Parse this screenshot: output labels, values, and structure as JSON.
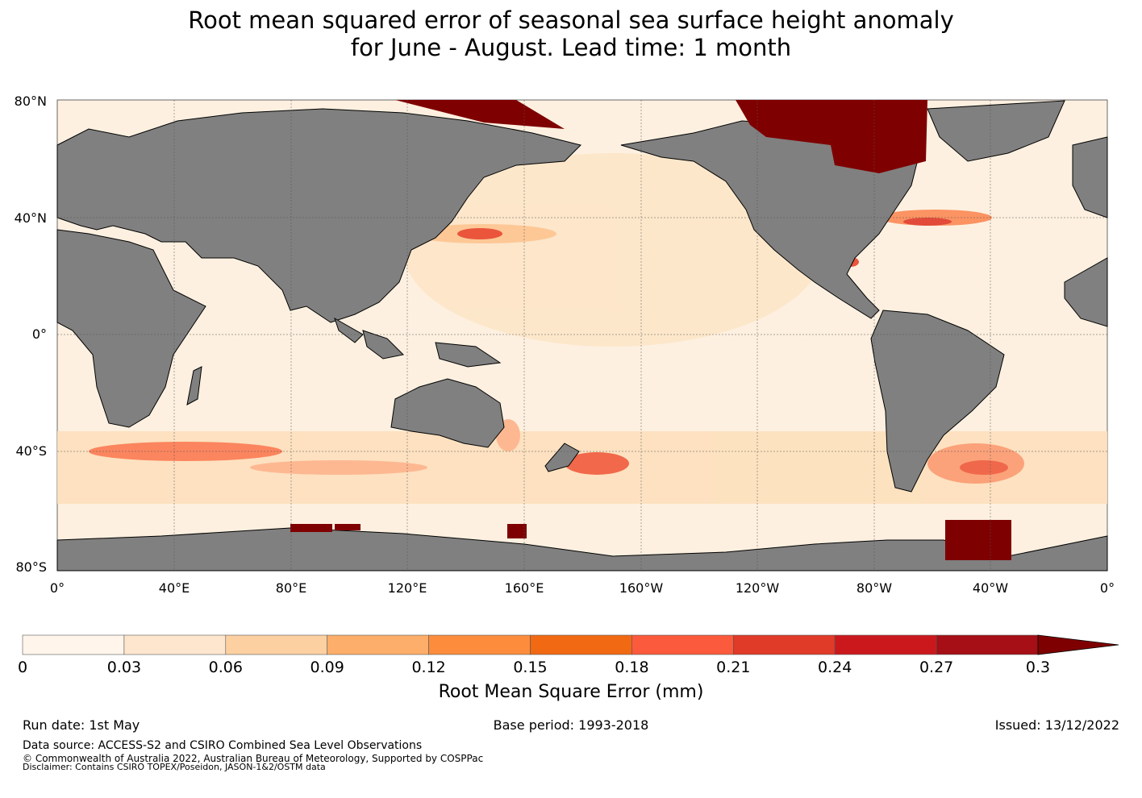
{
  "title": {
    "line1": "Root mean squared error of seasonal sea surface height anomaly",
    "line2": "for June - August. Lead time: 1 month"
  },
  "map": {
    "lat_labels": [
      "80°N",
      "40°N",
      "0°",
      "40°S",
      "80°S"
    ],
    "lon_labels": [
      "0°",
      "40°E",
      "80°E",
      "120°E",
      "160°E",
      "160°W",
      "120°W",
      "80°W",
      "40°W",
      "0°"
    ],
    "ocean_base_color": "#fdeedd",
    "land_color": "#808080",
    "high_error_color": "#7f0000"
  },
  "colorbar": {
    "label": "Root Mean Square Error (mm)",
    "ticks": [
      "0",
      "0.03",
      "0.06",
      "0.09",
      "0.12",
      "0.15",
      "0.18",
      "0.21",
      "0.24",
      "0.27",
      "0.3"
    ],
    "colors": [
      "#fff5eb",
      "#fee6ce",
      "#fdd0a2",
      "#fdae6b",
      "#fd8d3c",
      "#f16913",
      "#fb5a3c",
      "#e03a28",
      "#cb181d",
      "#a50f15",
      "#7f0000"
    ],
    "extend": "max"
  },
  "footer": {
    "run_date": "Run date: 1st May",
    "base_period": "Base period: 1993-2018",
    "issued": "Issued: 13/12/2022",
    "data_source": "Data source: ACCESS-S2 and CSIRO Combined Sea Level Observations",
    "copyright": "© Commonwealth of Australia 2022, Australian Bureau of Meteorology, Supported by COSPPac",
    "disclaimer": "Disclaimer: Contains CSIRO TOPEX/Poseidon, JASON-1&2/OSTM data"
  }
}
